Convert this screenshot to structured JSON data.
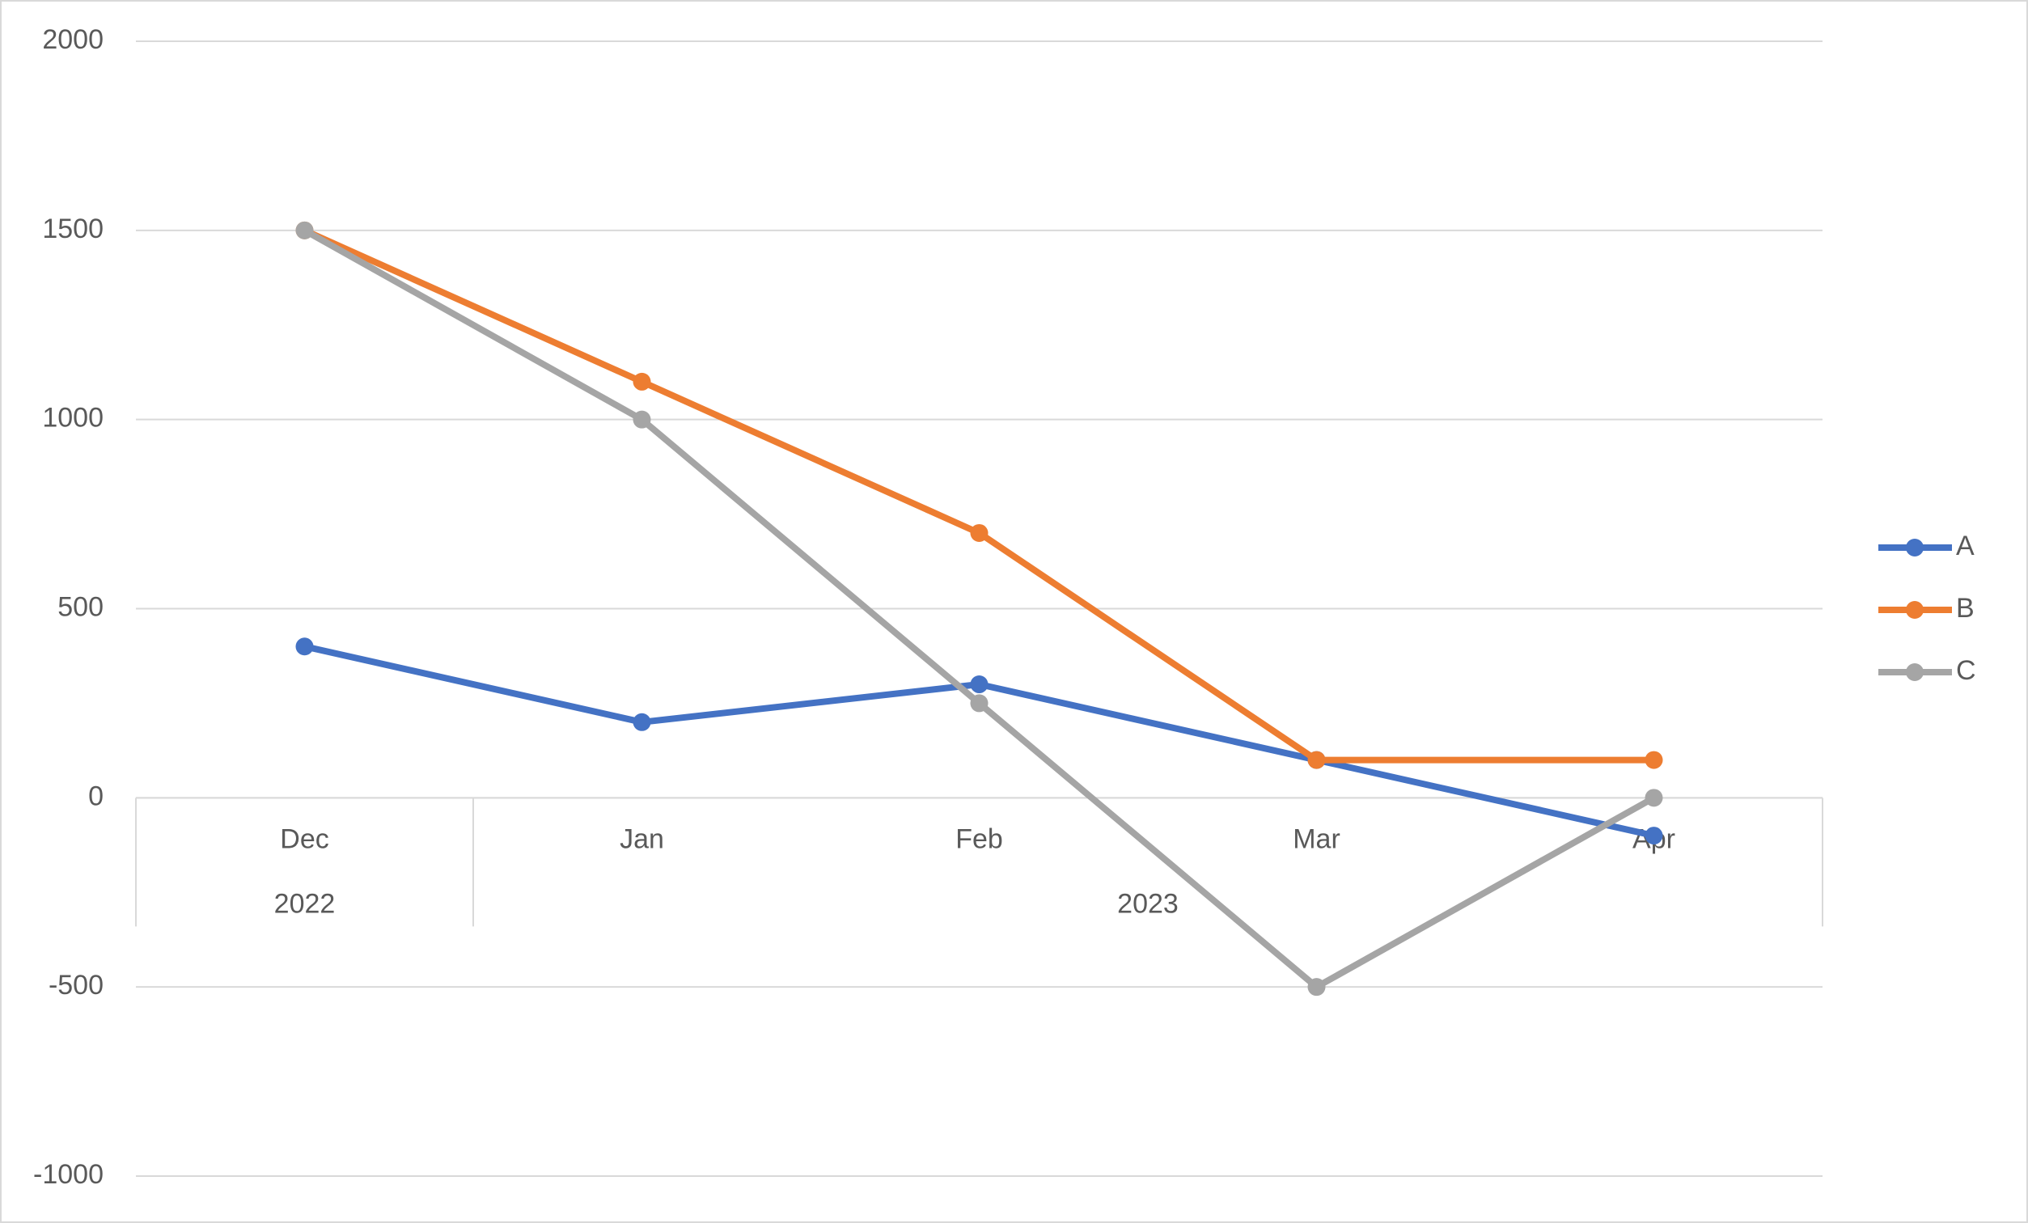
{
  "chart_data": {
    "type": "line",
    "categories": [
      "Dec",
      "Jan",
      "Feb",
      "Mar",
      "Apr"
    ],
    "category_groups": [
      {
        "label": "2022",
        "size": 1
      },
      {
        "label": "2023",
        "size": 4
      }
    ],
    "series": [
      {
        "name": "A",
        "color": "#4472c4",
        "values": [
          400,
          200,
          300,
          100,
          -100
        ]
      },
      {
        "name": "B",
        "color": "#ed7d31",
        "values": [
          1500,
          1100,
          700,
          100,
          100
        ]
      },
      {
        "name": "C",
        "color": "#a5a5a5",
        "values": [
          1500,
          1000,
          250,
          -500,
          0
        ]
      }
    ],
    "ylim": [
      -1000,
      2000
    ],
    "yticks": [
      -1000,
      -500,
      0,
      500,
      1000,
      1500,
      2000
    ],
    "grid": true,
    "legend": "right"
  }
}
